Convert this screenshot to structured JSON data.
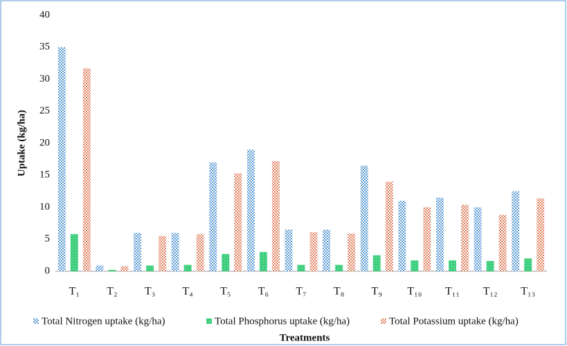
{
  "chart_data": {
    "type": "bar",
    "x_label": "Treatments",
    "y_label": "Uptake (kg/ha)",
    "categories": [
      "T₁",
      "T₂",
      "T₃",
      "T₄",
      "T₅",
      "T₆",
      "T₇",
      "T₈",
      "T₉",
      "T₁₀",
      "T₁₁",
      "T₁₂",
      "T₁₃"
    ],
    "series": [
      {
        "name": "Total Nitrogen uptake (kg/ha)",
        "color": "#5b9bd5",
        "values": [
          35,
          0.9,
          6,
          6,
          17,
          19,
          6.5,
          6.5,
          16.5,
          11,
          11.5,
          10,
          12.5
        ]
      },
      {
        "name": "Total Phosphorus uptake (kg/ha)",
        "color": "#3fcf7f",
        "values": [
          5.8,
          0.2,
          0.9,
          1,
          2.7,
          3,
          1,
          1,
          2.5,
          1.7,
          1.7,
          1.6,
          2
        ]
      },
      {
        "name": "Total Potassium uptake (kg/ha)",
        "color": "#e0805f",
        "values": [
          31.7,
          0.8,
          5.5,
          5.8,
          15.3,
          17.2,
          6.1,
          5.9,
          14,
          10,
          10.4,
          8.8,
          11.4
        ]
      }
    ],
    "ylim": [
      0,
      40
    ],
    "yticks": [
      0,
      5,
      10,
      15,
      20,
      25,
      30,
      35,
      40
    ],
    "grid": false
  }
}
